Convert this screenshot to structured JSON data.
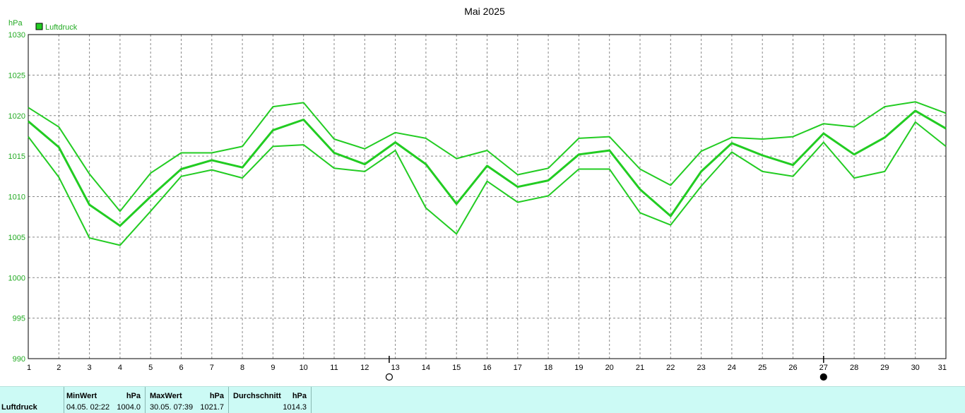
{
  "chart_data": {
    "type": "line",
    "title": "Mai 2025",
    "ylabel": "hPa",
    "legend": {
      "label": "Luftdruck",
      "color": "#22cc22",
      "position": "top-left"
    },
    "ylim": [
      990,
      1030
    ],
    "y_ticks": [
      990,
      995,
      1000,
      1005,
      1010,
      1015,
      1020,
      1025,
      1030
    ],
    "x_ticks": [
      1,
      2,
      3,
      4,
      5,
      6,
      7,
      8,
      9,
      10,
      11,
      12,
      13,
      14,
      15,
      16,
      17,
      18,
      19,
      20,
      21,
      22,
      23,
      24,
      25,
      26,
      27,
      28,
      29,
      30,
      31
    ],
    "grid": true,
    "line_color": "#22cc22",
    "x": [
      1,
      2,
      3,
      4,
      5,
      6,
      7,
      8,
      9,
      10,
      11,
      12,
      13,
      14,
      15,
      16,
      17,
      18,
      19,
      20,
      21,
      22,
      23,
      24,
      25,
      26,
      27,
      28,
      29,
      30,
      31
    ],
    "series": [
      {
        "role": "max",
        "values": [
          1021.0,
          1018.6,
          1012.8,
          1008.2,
          1012.9,
          1015.4,
          1015.4,
          1016.2,
          1021.1,
          1021.6,
          1017.1,
          1015.9,
          1017.9,
          1017.2,
          1014.7,
          1015.7,
          1012.7,
          1013.5,
          1017.2,
          1017.4,
          1013.4,
          1011.4,
          1015.6,
          1017.3,
          1017.1,
          1017.4,
          1019.0,
          1018.6,
          1021.1,
          1021.7,
          1020.3
        ]
      },
      {
        "role": "mean",
        "values": [
          1019.3,
          1016.1,
          1009.0,
          1006.4,
          1010.0,
          1013.4,
          1014.5,
          1013.6,
          1018.2,
          1019.5,
          1015.4,
          1014.0,
          1016.7,
          1014.0,
          1009.1,
          1013.8,
          1011.2,
          1012.0,
          1015.2,
          1015.7,
          1010.9,
          1007.6,
          1013.1,
          1016.6,
          1015.1,
          1013.9,
          1017.8,
          1015.2,
          1017.3,
          1020.6,
          1018.4
        ]
      },
      {
        "role": "min",
        "values": [
          1017.4,
          1012.4,
          1004.9,
          1004.0,
          1008.2,
          1012.5,
          1013.3,
          1012.3,
          1016.2,
          1016.4,
          1013.5,
          1013.1,
          1015.7,
          1008.6,
          1005.4,
          1011.9,
          1009.3,
          1010.1,
          1013.4,
          1013.4,
          1008.0,
          1006.5,
          1011.3,
          1015.5,
          1013.1,
          1012.5,
          1016.7,
          1012.3,
          1013.1,
          1019.2,
          1016.2
        ]
      }
    ],
    "moon_phases": [
      {
        "day": 12.8,
        "phase": "full-moon"
      },
      {
        "day": 27.0,
        "phase": "new-moon"
      }
    ]
  },
  "summary": {
    "name": "Luftdruck",
    "min": {
      "label": "MinWert",
      "unit": "hPa",
      "time": "04.05.  02:22",
      "value": "1004.0"
    },
    "max": {
      "label": "MaxWert",
      "unit": "hPa",
      "time": "30.05.  07:39",
      "value": "1021.7"
    },
    "avg": {
      "label": "Durchschnitt",
      "unit": "hPa",
      "value": "1014.3"
    }
  }
}
